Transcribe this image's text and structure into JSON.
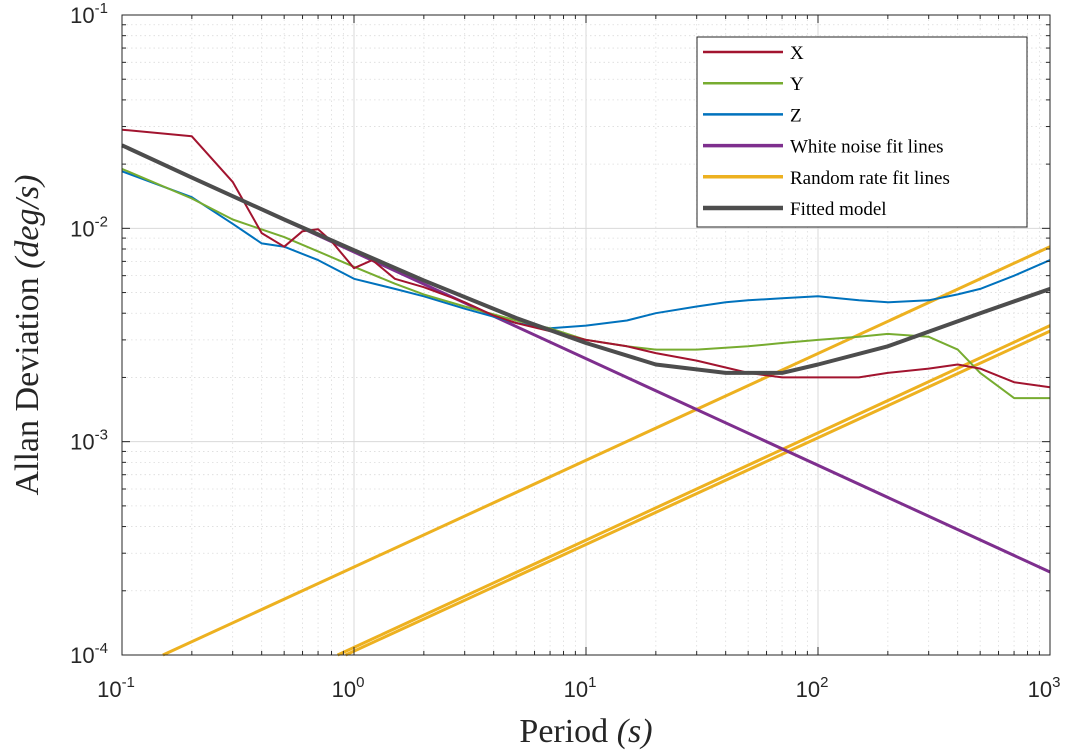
{
  "chart_data": {
    "type": "line",
    "xlabel_text": "Period ",
    "xlabel_unit": "(s)",
    "ylabel_text": "Allan Deviation ",
    "ylabel_unit": "(deg/s)",
    "x_scale": "log",
    "y_scale": "log",
    "xlim": [
      0.1,
      1000
    ],
    "ylim": [
      0.0001,
      0.1
    ],
    "x_ticks": [
      {
        "base": "10",
        "exp": "-1",
        "value": 0.1
      },
      {
        "base": "10",
        "exp": "0",
        "value": 1
      },
      {
        "base": "10",
        "exp": "1",
        "value": 10
      },
      {
        "base": "10",
        "exp": "2",
        "value": 100
      },
      {
        "base": "10",
        "exp": "3",
        "value": 1000
      }
    ],
    "y_ticks": [
      {
        "base": "10",
        "exp": "-4",
        "value": 0.0001
      },
      {
        "base": "10",
        "exp": "-3",
        "value": 0.001
      },
      {
        "base": "10",
        "exp": "-2",
        "value": 0.01
      },
      {
        "base": "10",
        "exp": "-1",
        "value": 0.1
      }
    ],
    "grid": "on (major and minor)",
    "legend_position": "top-right",
    "series": [
      {
        "name": "X",
        "color": "#A2142F",
        "style": "measured",
        "x": [
          0.1,
          0.2,
          0.3,
          0.4,
          0.5,
          0.6,
          0.7,
          0.8,
          1,
          1.2,
          1.5,
          2,
          3,
          4,
          5,
          7,
          10,
          15,
          20,
          30,
          50,
          70,
          100,
          150,
          200,
          300,
          400,
          500,
          700,
          1000
        ],
        "y": [
          0.029,
          0.027,
          0.0165,
          0.0095,
          0.0082,
          0.0097,
          0.0099,
          0.0087,
          0.0065,
          0.0071,
          0.0058,
          0.0053,
          0.0045,
          0.0039,
          0.0036,
          0.0033,
          0.003,
          0.0028,
          0.0026,
          0.0024,
          0.0021,
          0.002,
          0.002,
          0.002,
          0.0021,
          0.0022,
          0.0023,
          0.0022,
          0.0019,
          0.0018
        ]
      },
      {
        "name": "Y",
        "color": "#77AC30",
        "style": "measured",
        "x": [
          0.1,
          0.2,
          0.3,
          0.5,
          0.7,
          1,
          1.5,
          2,
          3,
          5,
          7,
          10,
          15,
          20,
          30,
          50,
          70,
          100,
          150,
          200,
          300,
          400,
          500,
          700,
          1000
        ],
        "y": [
          0.019,
          0.0138,
          0.011,
          0.0091,
          0.0078,
          0.0066,
          0.0055,
          0.0049,
          0.0043,
          0.0037,
          0.0034,
          0.003,
          0.0028,
          0.0027,
          0.0027,
          0.0028,
          0.0029,
          0.003,
          0.0031,
          0.0032,
          0.0031,
          0.0027,
          0.0021,
          0.0016,
          0.0016
        ]
      },
      {
        "name": "Z",
        "color": "#0072BD",
        "style": "measured",
        "x": [
          0.1,
          0.2,
          0.3,
          0.4,
          0.5,
          0.7,
          1,
          1.5,
          2,
          3,
          5,
          7,
          10,
          15,
          20,
          30,
          40,
          50,
          70,
          100,
          150,
          200,
          300,
          400,
          500,
          700,
          1000
        ],
        "y": [
          0.0185,
          0.014,
          0.0105,
          0.0085,
          0.0082,
          0.0071,
          0.0058,
          0.0052,
          0.0048,
          0.0042,
          0.0036,
          0.0034,
          0.0035,
          0.0037,
          0.004,
          0.0043,
          0.0045,
          0.0046,
          0.0047,
          0.0048,
          0.0046,
          0.0045,
          0.0046,
          0.0049,
          0.0052,
          0.006,
          0.0071
        ]
      },
      {
        "name": "White noise fit lines",
        "color": "#7E2F8E",
        "style": "fit",
        "x": [
          0.1,
          1000
        ],
        "y": [
          0.0245,
          0.000245
        ]
      },
      {
        "name": "Random rate fit lines",
        "color": "#EDB120",
        "style": "fit",
        "lines": [
          {
            "x": [
              0.15,
              1000
            ],
            "y": [
              0.0001,
              0.0082
            ]
          },
          {
            "x": [
              0.85,
              1000
            ],
            "y": [
              0.0001,
              0.0035
            ]
          },
          {
            "x": [
              0.92,
              1000
            ],
            "y": [
              0.0001,
              0.0033
            ]
          }
        ]
      },
      {
        "name": "Fitted model",
        "color": "#4D4D4D",
        "style": "model",
        "x": [
          0.1,
          0.2,
          0.5,
          1,
          2,
          5,
          10,
          20,
          40,
          70,
          100,
          200,
          500,
          1000
        ],
        "y": [
          0.0245,
          0.0173,
          0.011,
          0.0079,
          0.0057,
          0.0038,
          0.0029,
          0.0023,
          0.0021,
          0.0021,
          0.0023,
          0.0028,
          0.004,
          0.0052
        ]
      }
    ]
  }
}
